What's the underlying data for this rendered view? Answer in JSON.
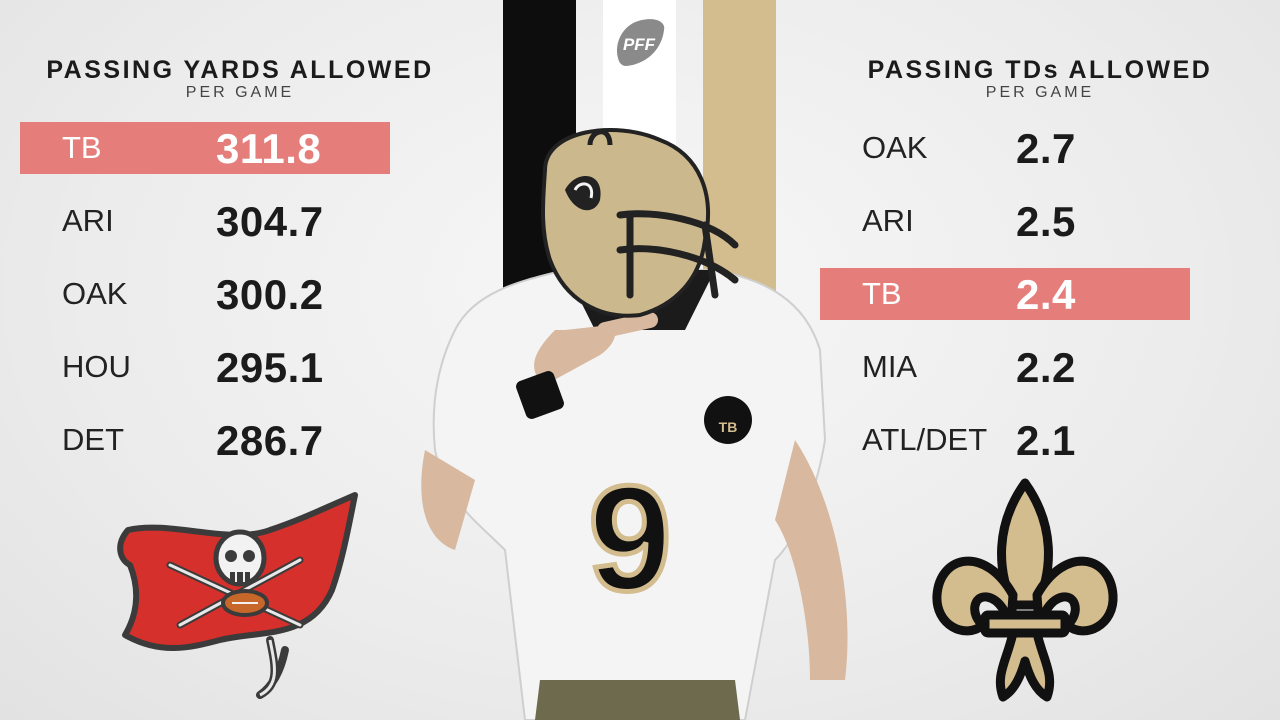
{
  "brand": {
    "logo_text": "PFF"
  },
  "colors": {
    "highlight": "#e57e7b",
    "saints_black": "#0d0d0d",
    "saints_gold": "#d3bc8d",
    "bucs_red": "#d5302b",
    "text_dark": "#1b1b1b"
  },
  "left_panel": {
    "title": "PASSING YARDS ALLOWED",
    "subtitle": "PER GAME",
    "rows": [
      {
        "team": "TB",
        "value": "311.8",
        "highlighted": true
      },
      {
        "team": "ARI",
        "value": "304.7",
        "highlighted": false
      },
      {
        "team": "OAK",
        "value": "300.2",
        "highlighted": false
      },
      {
        "team": "HOU",
        "value": "295.1",
        "highlighted": false
      },
      {
        "team": "DET",
        "value": "286.7",
        "highlighted": false
      }
    ],
    "logo_icon": "buccaneers-flag-icon"
  },
  "right_panel": {
    "title": "PASSING TDs ALLOWED",
    "subtitle": "PER GAME",
    "rows": [
      {
        "team": "OAK",
        "value": "2.7",
        "highlighted": false
      },
      {
        "team": "ARI",
        "value": "2.5",
        "highlighted": false
      },
      {
        "team": "TB",
        "value": "2.4",
        "highlighted": true
      },
      {
        "team": "MIA",
        "value": "2.2",
        "highlighted": false
      },
      {
        "team": "ATL/DET",
        "value": "2.1",
        "highlighted": false
      }
    ],
    "logo_icon": "fleur-de-lis-icon"
  },
  "player": {
    "jersey_number": "9",
    "patch_text": "TB"
  }
}
